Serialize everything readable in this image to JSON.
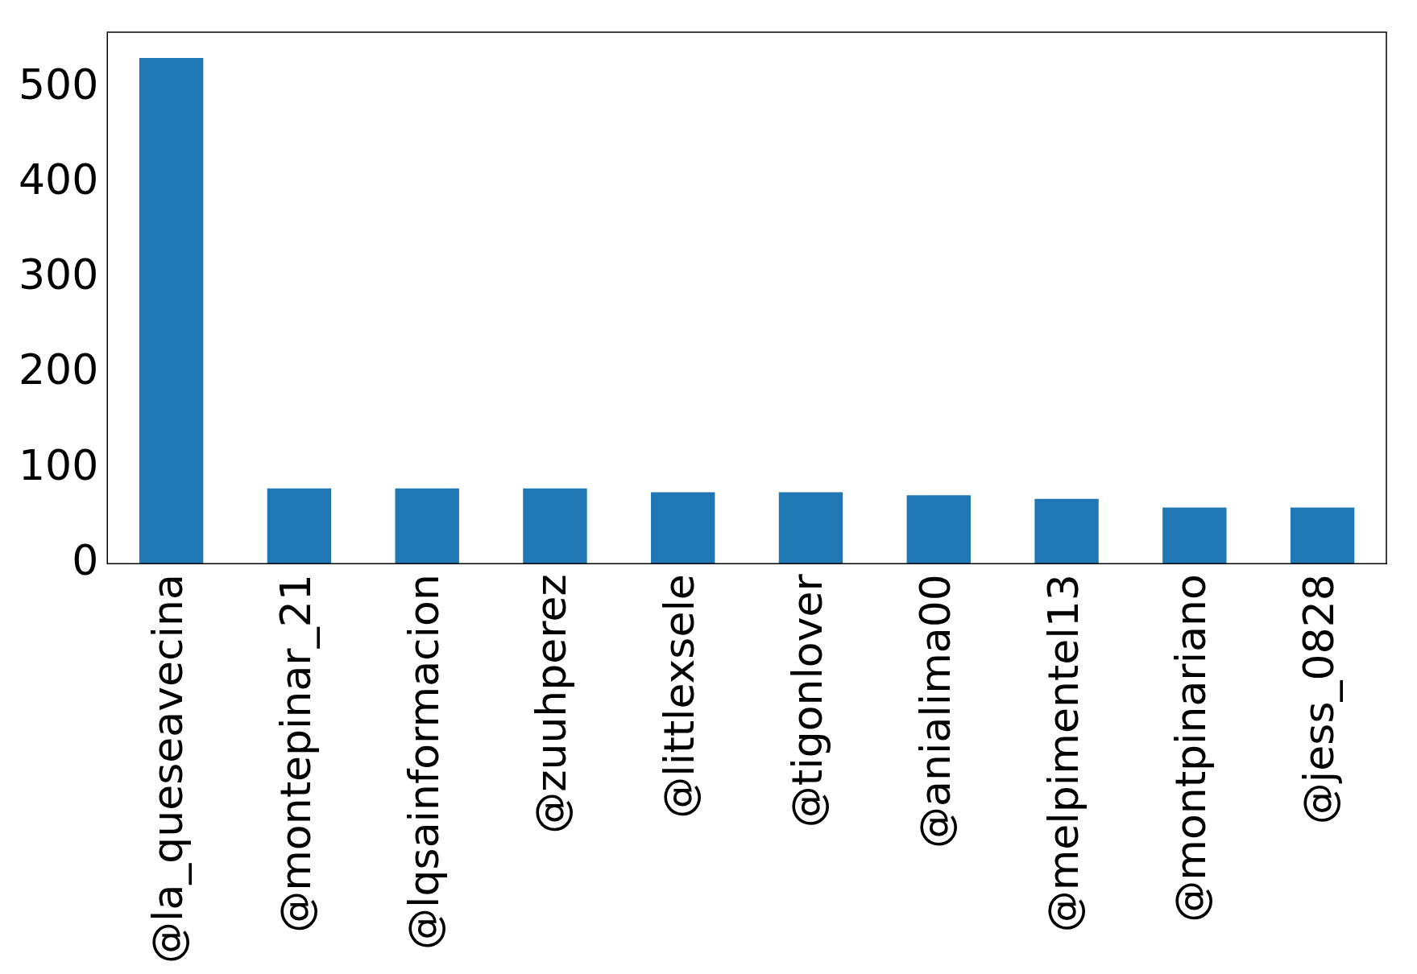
{
  "chart_data": {
    "type": "bar",
    "categories": [
      "@la_queseavecina",
      "@montepinar_21",
      "@lqsainformacion",
      "@zuuhperez",
      "@littlexsele",
      "@tigonlover",
      "@anialima00",
      "@melpimentel13",
      "@montpinariano",
      "@jess_0828"
    ],
    "values": [
      532,
      79,
      79,
      79,
      75,
      75,
      72,
      68,
      59,
      59
    ],
    "color": "#1f77b4",
    "ylim": [
      0,
      559
    ],
    "yticks": [
      0,
      100,
      200,
      300,
      400,
      500
    ],
    "grid": false,
    "legend": false
  }
}
